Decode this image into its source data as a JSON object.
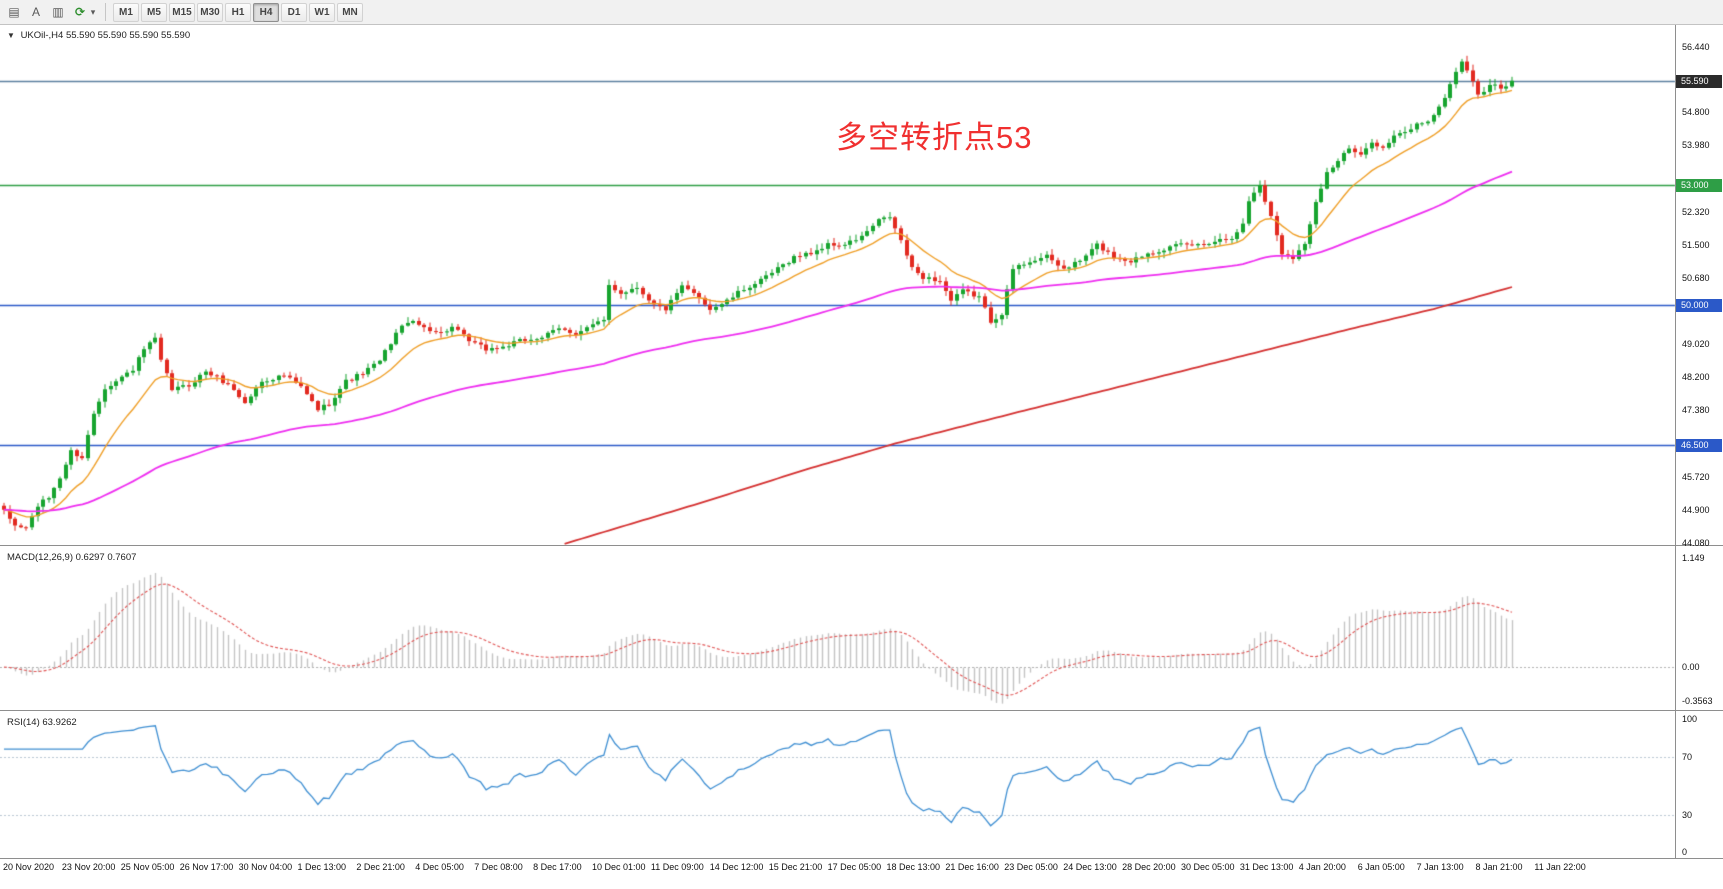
{
  "toolbar": {
    "icons": [
      {
        "name": "chart-list-icon",
        "glyph": "▤"
      },
      {
        "name": "text-tool-icon",
        "glyph": "A"
      },
      {
        "name": "bar-chart-icon",
        "glyph": "▥"
      },
      {
        "name": "cycle-icon",
        "glyph": "⟳"
      },
      {
        "name": "dropdown-caret-icon",
        "glyph": "▾"
      }
    ],
    "timeframes": [
      "M1",
      "M5",
      "M15",
      "M30",
      "H1",
      "H4",
      "D1",
      "W1",
      "MN"
    ],
    "active_timeframe": "H4"
  },
  "symbol_bar": {
    "collapse_glyph": "▼",
    "symbol": "UKOil-,H4",
    "ohlc": "55.590 55.590 55.590 55.590"
  },
  "annotation": {
    "text": "多空转折点53",
    "color": "#f03030"
  },
  "price_axis": {
    "ticks": [
      "56.440",
      "54.800",
      "53.980",
      "52.320",
      "51.500",
      "50.680",
      "49.020",
      "48.200",
      "47.380",
      "45.720",
      "44.900",
      "44.080"
    ],
    "current_price": "55.590"
  },
  "price_marker": {
    "text": "55.590",
    "price": 55.59,
    "bg": "#2b2b2b"
  },
  "hlines": [
    {
      "price": 55.59,
      "color": "#5b7f9f",
      "label": null
    },
    {
      "price": 53.0,
      "color": "#2e9e46",
      "label": "53.000"
    },
    {
      "price": 50.0,
      "color": "#2b59c8",
      "label": "50.000"
    },
    {
      "price": 46.5,
      "color": "#2b59c8",
      "label": "46.500"
    }
  ],
  "macd_pane": {
    "label": "MACD(12,26,9) 0.6297 0.7607",
    "macd_value": "0.6297",
    "signal_value": "0.7607",
    "ticks": [
      {
        "value": 1.149,
        "text": "1.149"
      },
      {
        "value": 0,
        "text": "0.00"
      },
      {
        "value": -0.3563,
        "text": "-0.3563"
      }
    ]
  },
  "rsi_pane": {
    "label": "RSI(14) 63.9262",
    "rsi_value": "63.9262",
    "ticks": [
      {
        "value": 100,
        "text": "100"
      },
      {
        "value": 70,
        "text": "70"
      },
      {
        "value": 30,
        "text": "30"
      },
      {
        "value": 0,
        "text": "0"
      }
    ],
    "levels": [
      70,
      30
    ]
  },
  "time_axis": {
    "labels": [
      "20 Nov 2020",
      "23 Nov 20:00",
      "25 Nov 05:00",
      "26 Nov 17:00",
      "30 Nov 04:00",
      "1 Dec 13:00",
      "2 Dec 21:00",
      "4 Dec 05:00",
      "7 Dec 08:00",
      "8 Dec 17:00",
      "10 Dec 01:00",
      "11 Dec 09:00",
      "14 Dec 12:00",
      "15 Dec 21:00",
      "17 Dec 05:00",
      "18 Dec 13:00",
      "21 Dec 16:00",
      "23 Dec 05:00",
      "24 Dec 13:00",
      "28 Dec 20:00",
      "30 Dec 05:00",
      "31 Dec 13:00",
      "4 Jan 20:00",
      "6 Jan 05:00",
      "7 Jan 13:00",
      "8 Jan 21:00",
      "11 Jan 22:00"
    ]
  },
  "chart_data": {
    "type": "candlestick",
    "symbol": "UKOil-",
    "timeframe": "H4",
    "bars": 270,
    "last_close": 55.59,
    "price_display_range": [
      44.02,
      56.98
    ],
    "price_keyframes": [
      [
        0,
        44.85
      ],
      [
        2,
        44.5
      ],
      [
        4,
        44.45
      ],
      [
        6,
        45.0
      ],
      [
        8,
        45.2
      ],
      [
        10,
        45.7
      ],
      [
        12,
        46.35
      ],
      [
        14,
        46.2
      ],
      [
        16,
        47.3
      ],
      [
        18,
        47.95
      ],
      [
        20,
        48.1
      ],
      [
        23,
        48.4
      ],
      [
        25,
        48.9
      ],
      [
        27,
        49.15
      ],
      [
        28,
        48.6
      ],
      [
        30,
        47.9
      ],
      [
        33,
        48.0
      ],
      [
        36,
        48.35
      ],
      [
        38,
        48.2
      ],
      [
        41,
        47.9
      ],
      [
        43,
        47.55
      ],
      [
        46,
        48.1
      ],
      [
        50,
        48.25
      ],
      [
        53,
        47.95
      ],
      [
        56,
        47.4
      ],
      [
        58,
        47.55
      ],
      [
        61,
        48.1
      ],
      [
        64,
        48.3
      ],
      [
        67,
        48.6
      ],
      [
        70,
        49.3
      ],
      [
        72,
        49.6
      ],
      [
        75,
        49.45
      ],
      [
        78,
        49.3
      ],
      [
        80,
        49.45
      ],
      [
        83,
        49.1
      ],
      [
        86,
        48.9
      ],
      [
        89,
        48.95
      ],
      [
        92,
        49.1
      ],
      [
        96,
        49.2
      ],
      [
        99,
        49.4
      ],
      [
        102,
        49.3
      ],
      [
        105,
        49.5
      ],
      [
        107,
        49.6
      ],
      [
        108,
        50.5
      ],
      [
        110,
        50.3
      ],
      [
        113,
        50.45
      ],
      [
        116,
        50.0
      ],
      [
        118,
        49.9
      ],
      [
        121,
        50.45
      ],
      [
        124,
        50.2
      ],
      [
        126,
        49.9
      ],
      [
        129,
        50.1
      ],
      [
        132,
        50.4
      ],
      [
        135,
        50.6
      ],
      [
        138,
        50.9
      ],
      [
        141,
        51.2
      ],
      [
        144,
        51.3
      ],
      [
        147,
        51.5
      ],
      [
        150,
        51.5
      ],
      [
        153,
        51.7
      ],
      [
        156,
        52.1
      ],
      [
        158,
        52.2
      ],
      [
        160,
        51.6
      ],
      [
        162,
        50.9
      ],
      [
        164,
        50.7
      ],
      [
        167,
        50.6
      ],
      [
        169,
        50.1
      ],
      [
        171,
        50.35
      ],
      [
        174,
        50.2
      ],
      [
        176,
        49.6
      ],
      [
        178,
        49.8
      ],
      [
        180,
        50.9
      ],
      [
        183,
        51.1
      ],
      [
        186,
        51.2
      ],
      [
        189,
        50.9
      ],
      [
        192,
        51.1
      ],
      [
        195,
        51.5
      ],
      [
        198,
        51.2
      ],
      [
        201,
        51.1
      ],
      [
        204,
        51.3
      ],
      [
        207,
        51.4
      ],
      [
        210,
        51.5
      ],
      [
        213,
        51.5
      ],
      [
        216,
        51.6
      ],
      [
        219,
        51.7
      ],
      [
        221,
        52.0
      ],
      [
        222,
        52.6
      ],
      [
        224,
        53.0
      ],
      [
        226,
        52.2
      ],
      [
        228,
        51.3
      ],
      [
        230,
        51.2
      ],
      [
        232,
        51.5
      ],
      [
        234,
        52.6
      ],
      [
        236,
        53.3
      ],
      [
        238,
        53.6
      ],
      [
        240,
        53.9
      ],
      [
        242,
        53.7
      ],
      [
        244,
        54.1
      ],
      [
        246,
        53.9
      ],
      [
        248,
        54.2
      ],
      [
        250,
        54.3
      ],
      [
        252,
        54.5
      ],
      [
        254,
        54.6
      ],
      [
        256,
        54.9
      ],
      [
        258,
        55.5
      ],
      [
        260,
        56.1
      ],
      [
        262,
        55.6
      ],
      [
        263,
        55.2
      ],
      [
        265,
        55.5
      ],
      [
        267,
        55.4
      ],
      [
        269,
        55.59
      ]
    ],
    "red_ma_keyframes": [
      [
        100,
        44.05
      ],
      [
        125,
        45.1
      ],
      [
        143,
        45.9
      ],
      [
        159,
        46.55
      ],
      [
        180,
        47.3
      ],
      [
        200,
        48.0
      ],
      [
        220,
        48.7
      ],
      [
        240,
        49.4
      ],
      [
        255,
        49.9
      ],
      [
        269,
        50.45
      ]
    ],
    "ema_fast_period": 13,
    "ema_mid_period": 80,
    "macd": {
      "fast": 12,
      "slow": 26,
      "signal": 9,
      "display_range": [
        -0.45,
        1.25
      ]
    },
    "rsi_period": 14,
    "colors": {
      "candle_up": "#17a42f",
      "candle_down": "#e22a20",
      "ma_fast": "#ef9f28",
      "ma_mid": "#ee2ef0",
      "ma_slow": "#d43030",
      "macd_hist": "#c4c4c4",
      "macd_signal": "#e05555",
      "rsi": "#3f8fd2"
    }
  }
}
